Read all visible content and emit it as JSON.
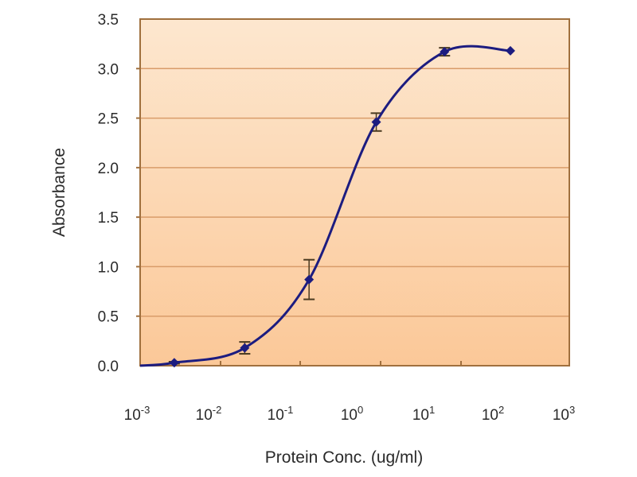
{
  "chart_data": {
    "type": "line",
    "title": "",
    "xlabel": "Protein Conc. (ug/ml)",
    "ylabel": "Absorbance",
    "xscale": "log",
    "xlim": [
      0.001,
      1000
    ],
    "ylim": [
      0,
      3.5
    ],
    "grid": true,
    "legend": "none",
    "x_tick_labels": [
      {
        "base": "10",
        "exp": "-3"
      },
      {
        "base": "10",
        "exp": "-2"
      },
      {
        "base": "10",
        "exp": "-1"
      },
      {
        "base": "10",
        "exp": "0"
      },
      {
        "base": "10",
        "exp": "1"
      },
      {
        "base": "10",
        "exp": "2"
      },
      {
        "base": "10",
        "exp": "3"
      }
    ],
    "y_tick_labels": [
      "0.0",
      "0.5",
      "1.0",
      "1.5",
      "2.0",
      "2.5",
      "3.0",
      "3.5"
    ],
    "y_ticks": [
      0,
      0.5,
      1.0,
      1.5,
      2.0,
      2.5,
      3.0,
      3.5
    ],
    "series": [
      {
        "name": "Absorbance",
        "x": [
          0.003,
          0.029,
          0.23,
          2.0,
          18,
          150
        ],
        "y": [
          0.03,
          0.18,
          0.87,
          2.46,
          3.17,
          3.18
        ],
        "error": [
          0.01,
          0.06,
          0.2,
          0.09,
          0.04,
          0.0
        ]
      }
    ],
    "colors": {
      "plot_bg_top": "#fde7cf",
      "plot_bg_bottom": "#fbc898",
      "gridline": "#d99c6a",
      "border": "#a0703e",
      "line": "#1c1c80",
      "errorbar": "#4a3a20"
    }
  }
}
